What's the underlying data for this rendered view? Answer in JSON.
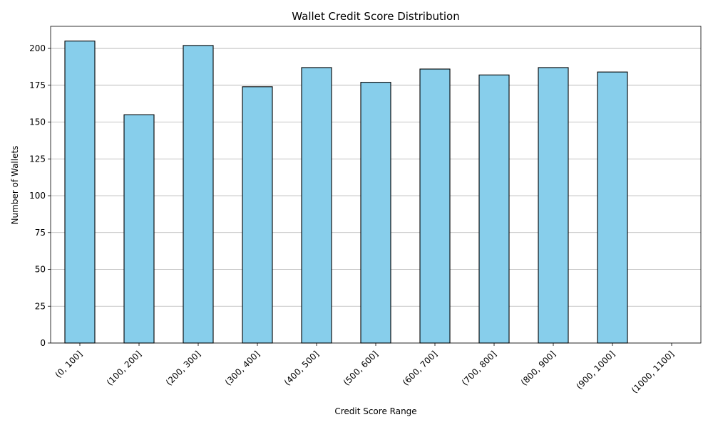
{
  "chart_data": {
    "type": "bar",
    "title": "Wallet Credit Score Distribution",
    "xlabel": "Credit Score Range",
    "ylabel": "Number of Wallets",
    "categories": [
      "(0, 100]",
      "(100, 200]",
      "(200, 300]",
      "(300, 400]",
      "(400, 500]",
      "(500, 600]",
      "(600, 700]",
      "(700, 800]",
      "(800, 900]",
      "(900, 1000]",
      "(1000, 1100]"
    ],
    "values": [
      205,
      155,
      202,
      174,
      187,
      177,
      186,
      182,
      187,
      184,
      0
    ],
    "ylim": [
      0,
      215
    ],
    "yticks": [
      0,
      25,
      50,
      75,
      100,
      125,
      150,
      175,
      200
    ],
    "grid": "y-axis horizontal lines",
    "bar_color": "#87ceeb",
    "edge_color": "#000000"
  }
}
